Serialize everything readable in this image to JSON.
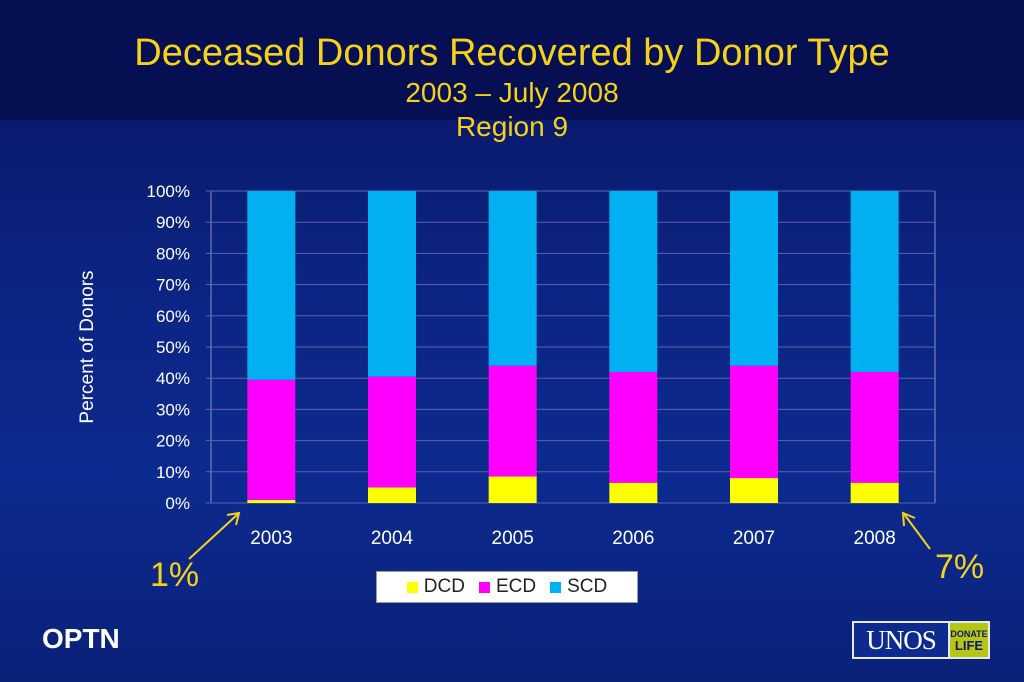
{
  "title": "Deceased Donors Recovered by Donor Type",
  "subtitle1": "2003 – July 2008",
  "subtitle2": "Region 9",
  "footer_left": "OPTN",
  "logo": {
    "text": "UNOS",
    "badge_top": "DONATE",
    "badge_bottom": "LIFE"
  },
  "callouts": {
    "left": "1%",
    "right": "7%"
  },
  "chart_data": {
    "type": "bar",
    "stacked": true,
    "categories": [
      "2003",
      "2004",
      "2005",
      "2006",
      "2007",
      "2008"
    ],
    "series": [
      {
        "name": "DCD",
        "color": "#ffff00",
        "values": [
          1,
          5,
          8.5,
          6.5,
          8,
          6.5
        ]
      },
      {
        "name": "ECD",
        "color": "#ff00ff",
        "values": [
          38.5,
          35.5,
          35.5,
          35.5,
          36,
          35.5
        ]
      },
      {
        "name": "SCD",
        "color": "#00b0f0",
        "values": [
          60.5,
          59.5,
          56,
          58,
          56,
          58
        ]
      }
    ],
    "ylabel": "Percent of Donors",
    "ylim": [
      0,
      100
    ],
    "yticks": [
      "0%",
      "10%",
      "20%",
      "30%",
      "40%",
      "50%",
      "60%",
      "70%",
      "80%",
      "90%",
      "100%"
    ],
    "grid": true,
    "legend_position": "bottom"
  }
}
